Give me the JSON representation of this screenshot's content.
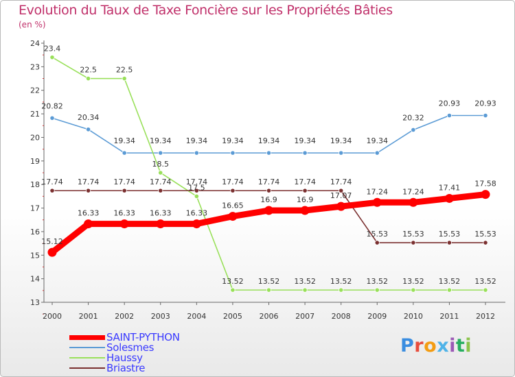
{
  "header": {
    "title": "Evolution du Taux de Taxe Foncière sur les Propriétés Bâties",
    "subtitle": "(en %)"
  },
  "chart_data": {
    "type": "line",
    "title": "Evolution du Taux de Taxe Foncière sur les Propriétés Bâties",
    "ylabel": "(en %)",
    "xlabel": "",
    "x": [
      "2000",
      "2001",
      "2002",
      "2003",
      "2004",
      "2005",
      "2006",
      "2007",
      "2008",
      "2009",
      "2010",
      "2011",
      "2012"
    ],
    "yticks": [
      13,
      14,
      15,
      16,
      17,
      18,
      19,
      20,
      21,
      22,
      23,
      24
    ],
    "ylim": [
      13,
      24
    ],
    "series": [
      {
        "name": "SAINT-PYTHON",
        "color": "#ff0000",
        "values": [
          15.12,
          16.33,
          16.33,
          16.33,
          16.33,
          16.65,
          16.9,
          16.9,
          17.07,
          17.24,
          17.24,
          17.41,
          17.58
        ],
        "labels": [
          "15.12",
          "16.33",
          "16.33",
          "16.33",
          "16.33",
          "16.65",
          "16.9",
          "16.9",
          "17.07",
          "17.24",
          "17.24",
          "17.41",
          "17.58"
        ]
      },
      {
        "name": "Solesmes",
        "color": "#5b9bd5",
        "values": [
          20.82,
          20.34,
          19.34,
          19.34,
          19.34,
          19.34,
          19.34,
          19.34,
          19.34,
          19.34,
          20.32,
          20.93,
          20.93
        ],
        "labels": [
          "20.82",
          "20.34",
          "19.34",
          "19.34",
          "19.34",
          "19.34",
          "19.34",
          "19.34",
          "19.34",
          "19.34",
          "20.32",
          "20.93",
          "20.93"
        ]
      },
      {
        "name": "Haussy",
        "color": "#99e05a",
        "values": [
          23.4,
          22.5,
          22.5,
          18.5,
          17.5,
          13.52,
          13.52,
          13.52,
          13.52,
          13.52,
          13.52,
          13.52,
          13.52
        ],
        "labels": [
          "23.4",
          "22.5",
          "22.5",
          "18.5",
          "17.5",
          "13.52",
          "13.52",
          "13.52",
          "13.52",
          "13.52",
          "13.52",
          "13.52",
          "13.52"
        ]
      },
      {
        "name": "Briastre",
        "color": "#7a2f2f",
        "values": [
          17.74,
          17.74,
          17.74,
          17.74,
          17.74,
          17.74,
          17.74,
          17.74,
          17.74,
          15.53,
          15.53,
          15.53,
          15.53
        ],
        "labels": [
          "17.74",
          "17.74",
          "17.74",
          "17.74",
          "17.74",
          "17.74",
          "17.74",
          "17.74",
          "17.74",
          "15.53",
          "15.53",
          "15.53",
          "15.53"
        ]
      }
    ]
  },
  "legend": [
    {
      "label": "SAINT-PYTHON",
      "color": "#ff0000"
    },
    {
      "label": "Solesmes",
      "color": "#5b9bd5"
    },
    {
      "label": "Haussy",
      "color": "#99e05a"
    },
    {
      "label": "Briastre",
      "color": "#7a2f2f"
    }
  ],
  "logo": {
    "letters": [
      "P",
      "r",
      "o",
      "x",
      "i",
      "t",
      "i"
    ],
    "colors": [
      "#3a8de0",
      "#e74c3c",
      "#f39c12",
      "#4fb3e8",
      "#9b59b6",
      "#27ae60",
      "#8bc34a"
    ]
  }
}
